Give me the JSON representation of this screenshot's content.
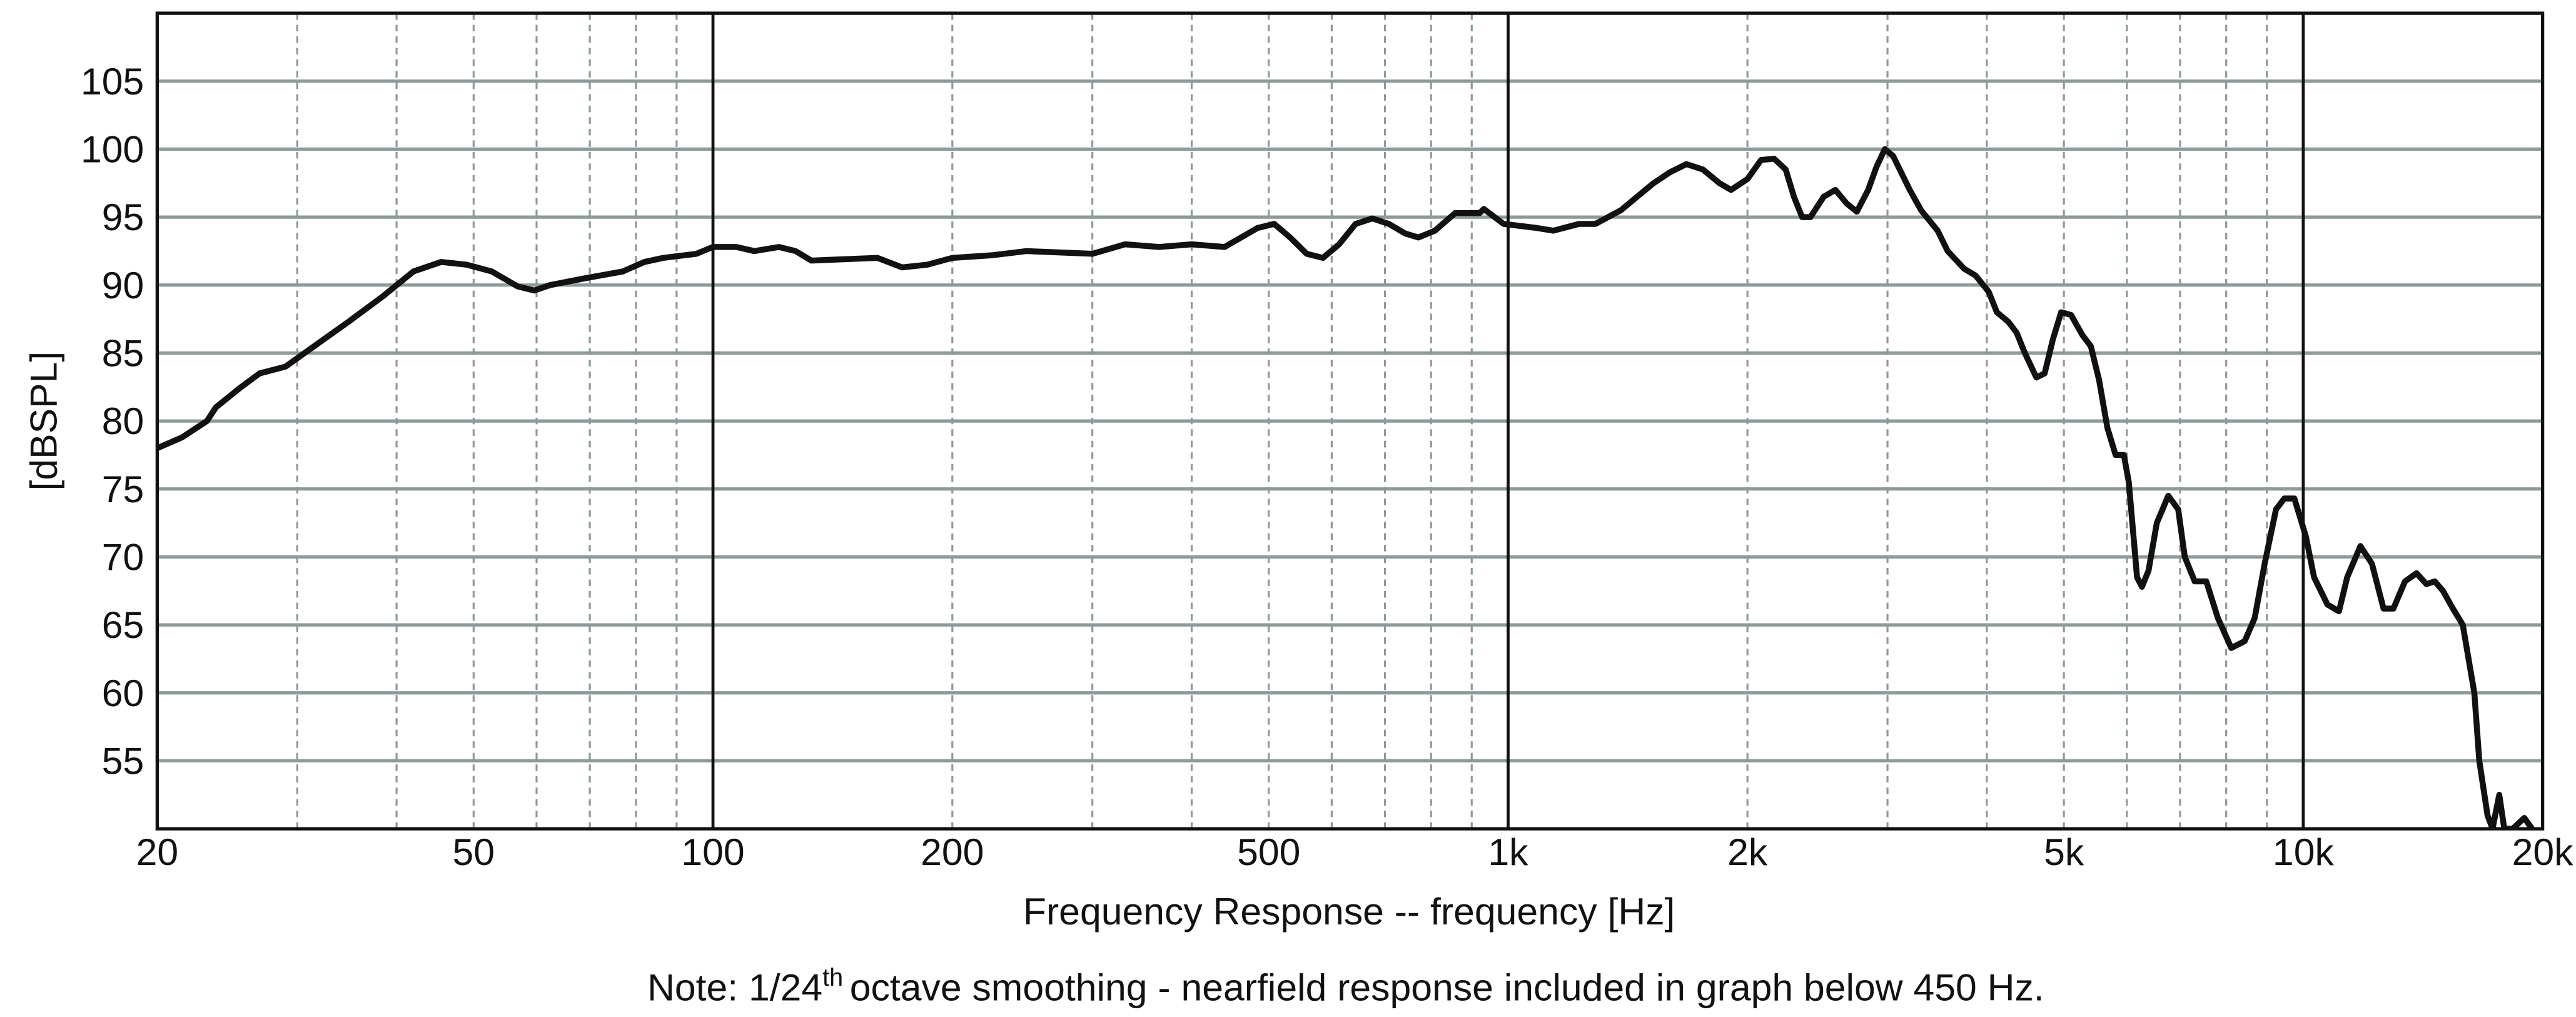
{
  "chart_data": {
    "type": "line",
    "xlabel": "Frequency Response -- frequency [Hz]",
    "ylabel": "[dBSPL]",
    "note_parts": [
      "Note: 1/24",
      "th",
      "octave smoothing - nearfield response included in graph below 450 Hz."
    ],
    "xscale": "log",
    "xlim": [
      20,
      20000
    ],
    "ylim": [
      50,
      110
    ],
    "xticks": [
      20,
      50,
      100,
      200,
      500,
      {
        "value": 1000,
        "label": "1k"
      },
      {
        "value": 2000,
        "label": "2k"
      },
      {
        "value": 5000,
        "label": "5k"
      },
      {
        "value": 10000,
        "label": "10k"
      },
      {
        "value": 20000,
        "label": "20k"
      }
    ],
    "yticks": [
      55,
      60,
      65,
      70,
      75,
      80,
      85,
      90,
      95,
      100,
      105
    ],
    "x_major_grid": [
      100,
      1000,
      10000
    ],
    "x_minor_grid": [
      30,
      40,
      50,
      60,
      70,
      80,
      90,
      200,
      300,
      400,
      500,
      600,
      700,
      800,
      900,
      2000,
      3000,
      4000,
      5000,
      6000,
      7000,
      8000,
      9000
    ],
    "grid": true,
    "x": [
      20,
      21.5,
      23.1,
      23.7,
      25.5,
      26.9,
      29,
      31.5,
      34.8,
      38.5,
      42,
      45.5,
      49,
      52.7,
      56.8,
      59.6,
      62.4,
      69,
      77,
      82,
      86.6,
      95.3,
      100,
      107,
      112.7,
      121,
      127,
      133,
      146,
      161,
      173,
      186,
      200,
      225,
      248,
      273,
      300,
      330,
      364,
      400,
      440,
      484,
      508,
      532,
      558,
      585,
      613,
      643,
      675,
      708,
      742,
      771,
      809,
      858,
      921,
      932,
      987,
      1087,
      1140,
      1228,
      1288,
      1386,
      1453,
      1524,
      1598,
      1676,
      1758,
      1844,
      1907,
      2000,
      2080,
      2160,
      2234,
      2288,
      2343,
      2400,
      2494,
      2580,
      2666,
      2745,
      2837,
      2906,
      2977,
      3049,
      3200,
      3307,
      3469,
      3571,
      3746,
      3872,
      4022,
      4118,
      4257,
      4360,
      4466,
      4617,
      4729,
      4843,
      4960,
      5105,
      5278,
      5406,
      5537,
      5671,
      5808,
      5948,
      6034,
      6180,
      6268,
      6389,
      6544,
      6765,
      6962,
      7096,
      7303,
      7552,
      7810,
      8119,
      8440,
      8688,
      8943,
      9242,
      9467,
      9746,
      10077,
      10319,
      10725,
      11090,
      11357,
      11800,
      12201,
      12618,
      12984,
      13426,
      13883,
      14287,
      14635,
      14989,
      15425,
      15873,
      16412,
      16650,
      17050,
      17300,
      17640,
      17900,
      18340,
      18966,
      19400
    ],
    "series": [
      {
        "color": "#111111",
        "values": [
          78,
          78.8,
          80,
          81,
          82.5,
          83.5,
          84,
          85.5,
          87.3,
          89.2,
          91,
          91.7,
          91.5,
          91,
          89.9,
          89.6,
          90,
          90.5,
          91,
          91.7,
          92,
          92.3,
          92.8,
          92.8,
          92.5,
          92.8,
          92.5,
          91.8,
          91.9,
          92,
          91.3,
          91.5,
          92,
          92.2,
          92.5,
          92.4,
          92.3,
          93,
          92.8,
          93,
          92.8,
          94.2,
          94.5,
          93.5,
          92.3,
          92,
          93,
          94.5,
          94.9,
          94.5,
          93.8,
          93.5,
          94,
          95.3,
          95.3,
          95.6,
          94.5,
          94.2,
          94,
          94.5,
          94.5,
          95.5,
          96.5,
          97.5,
          98.3,
          98.9,
          98.5,
          97.5,
          97,
          97.8,
          99.2,
          99.3,
          98.5,
          96.5,
          95,
          95,
          96.5,
          97,
          96,
          95.4,
          97,
          98.7,
          100,
          99.5,
          97,
          95.5,
          94,
          92.5,
          91.2,
          90.7,
          89.5,
          88,
          87.3,
          86.5,
          85,
          83.2,
          83.5,
          86,
          88,
          87.8,
          86.3,
          85.5,
          83,
          79.5,
          77.5,
          77.5,
          75.5,
          68.5,
          67.8,
          69,
          72.5,
          74.5,
          73.5,
          70,
          68.2,
          68.2,
          65.5,
          63.3,
          63.8,
          65.5,
          69.5,
          73.5,
          74.3,
          74.3,
          71.5,
          68.5,
          66.5,
          66,
          68.5,
          70.8,
          69.5,
          66.2,
          66.2,
          68.2,
          68.8,
          68,
          68.2,
          67.5,
          66.2,
          65,
          60,
          55,
          51,
          50,
          52.5,
          50,
          50,
          50.8,
          50
        ]
      }
    ]
  }
}
